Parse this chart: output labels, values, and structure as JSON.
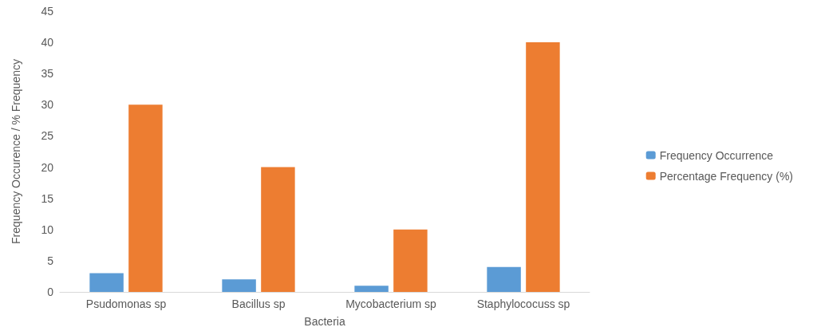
{
  "chart_data": {
    "type": "bar",
    "xlabel": "Bacteria",
    "ylabel": "Frequency Occurence / % Frequency",
    "categories": [
      "Psudomonas sp",
      "Bacillus sp",
      "Mycobacterium sp",
      "Staphylococuss sp"
    ],
    "series": [
      {
        "name": "Frequency Occurrence",
        "color": "#5b9bd5",
        "values": [
          3,
          2,
          1,
          4
        ]
      },
      {
        "name": "Percentage Frequency (%)",
        "color": "#ed7d31",
        "values": [
          30,
          20,
          10,
          40
        ]
      }
    ],
    "ylim": [
      0,
      45
    ],
    "yticks": [
      0,
      5,
      10,
      15,
      20,
      25,
      30,
      35,
      40,
      45
    ],
    "grid": false,
    "legend": "right"
  }
}
